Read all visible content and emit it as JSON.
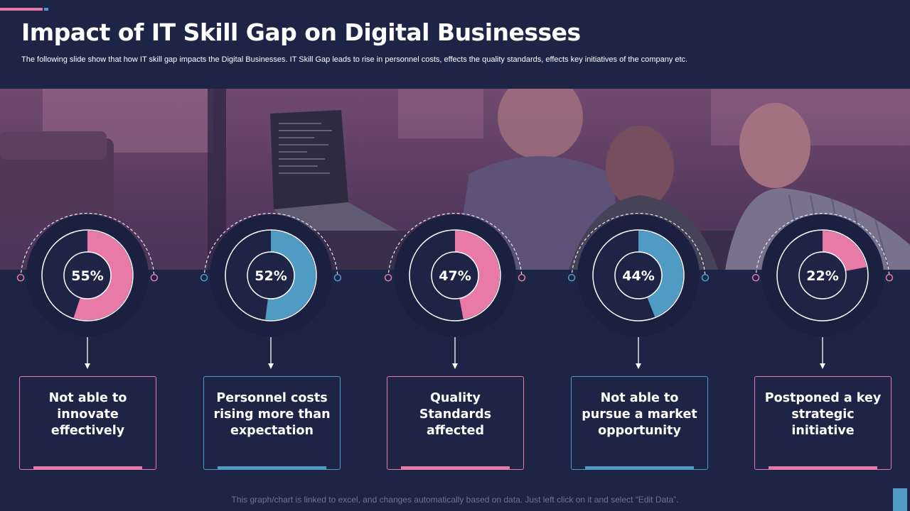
{
  "header": {
    "title": "Impact of IT Skill Gap on Digital Businesses",
    "subtitle": "The following slide show that how IT  skill gap impacts the Digital Businesses. IT Skill Gap leads to rise in personnel costs, effects the quality standards, effects key initiatives of the company etc."
  },
  "chart_data": [
    {
      "type": "pie",
      "variant": "donut",
      "values": [
        55
      ],
      "label": "55%",
      "color": "#e87aa8"
    },
    {
      "type": "pie",
      "variant": "donut",
      "values": [
        52
      ],
      "label": "52%",
      "color": "#4f9bc4"
    },
    {
      "type": "pie",
      "variant": "donut",
      "values": [
        47
      ],
      "label": "47%",
      "color": "#e87aa8"
    },
    {
      "type": "pie",
      "variant": "donut",
      "values": [
        44
      ],
      "label": "44%",
      "color": "#4f9bc4"
    },
    {
      "type": "pie",
      "variant": "donut",
      "values": [
        22
      ],
      "label": "22%",
      "color": "#e87aa8"
    }
  ],
  "cards": [
    {
      "text": "Not able to innovate effectively",
      "color": "#e87aa8"
    },
    {
      "text": "Personnel costs rising more than expectation",
      "color": "#4f9bc4"
    },
    {
      "text": "Quality Standards affected",
      "color": "#e87aa8"
    },
    {
      "text": "Not able to pursue a market opportunity",
      "color": "#4f9bc4"
    },
    {
      "text": "Postponed a key strategic initiative",
      "color": "#e87aa8"
    }
  ],
  "footer": {
    "note": "This graph/chart is linked to excel, and changes automatically based on data.  Just left click on it and select “Edit Data”."
  },
  "colors": {
    "background": "#1e2446",
    "pink": "#e87aa8",
    "blue": "#4f9bc4"
  }
}
